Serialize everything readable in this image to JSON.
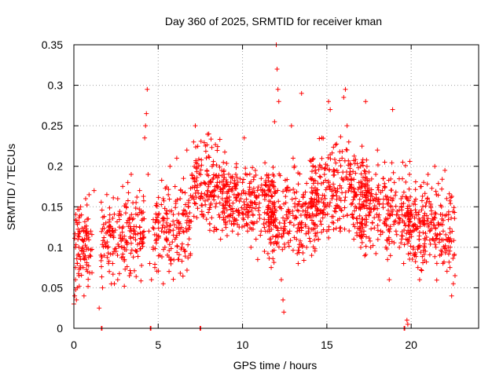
{
  "chart_data": {
    "type": "scatter",
    "title": "Day 360 of 2025, SRMTID for receiver kman",
    "xlabel": "GPS time / hours",
    "ylabel": "SRMTID / TECUs",
    "xlim": [
      0,
      24
    ],
    "ylim": [
      0,
      0.35
    ],
    "x_ticks": [
      0,
      5,
      10,
      15,
      20
    ],
    "x_tick_labels": [
      "0",
      "5",
      "10",
      "15",
      "20"
    ],
    "y_ticks": [
      0,
      0.05,
      0.1,
      0.15,
      0.2,
      0.25,
      0.3,
      0.35
    ],
    "y_tick_labels": [
      "0",
      "0.05",
      "0.1",
      "0.15",
      "0.2",
      "0.25",
      "0.3",
      "0.35"
    ],
    "grid": true,
    "marker": "+",
    "series_color": "#ff0000",
    "points": [
      [
        0.0,
        0.03
      ],
      [
        0.05,
        0.04
      ],
      [
        0.1,
        0.06
      ],
      [
        0.1,
        0.075
      ],
      [
        0.15,
        0.035
      ],
      [
        0.2,
        0.08
      ],
      [
        0.2,
        0.05
      ],
      [
        0.25,
        0.09
      ],
      [
        0.3,
        0.1
      ],
      [
        0.3,
        0.065
      ],
      [
        0.35,
        0.12
      ],
      [
        0.4,
        0.085
      ],
      [
        0.45,
        0.14
      ],
      [
        0.5,
        0.11
      ],
      [
        0.55,
        0.075
      ],
      [
        0.6,
        0.095
      ],
      [
        0.65,
        0.125
      ],
      [
        0.7,
        0.16
      ],
      [
        0.75,
        0.1
      ],
      [
        0.8,
        0.07
      ],
      [
        0.85,
        0.135
      ],
      [
        0.9,
        0.165
      ],
      [
        0.95,
        0.09
      ],
      [
        1.0,
        0.12
      ],
      [
        0.6,
        0.04
      ],
      [
        1.5,
        0.025
      ],
      [
        1.7,
        0.05
      ],
      [
        1.8,
        0.09
      ],
      [
        1.9,
        0.13
      ],
      [
        2.0,
        0.1
      ],
      [
        2.1,
        0.07
      ],
      [
        2.2,
        0.115
      ],
      [
        2.3,
        0.08
      ],
      [
        2.4,
        0.055
      ],
      [
        2.5,
        0.095
      ],
      [
        2.6,
        0.06
      ],
      [
        2.7,
        0.125
      ],
      [
        2.8,
        0.14
      ],
      [
        2.9,
        0.1
      ],
      [
        3.0,
        0.085
      ],
      [
        3.1,
        0.15
      ],
      [
        3.2,
        0.18
      ],
      [
        3.3,
        0.13
      ],
      [
        3.4,
        0.105
      ],
      [
        3.5,
        0.155
      ],
      [
        3.6,
        0.12
      ],
      [
        3.7,
        0.095
      ],
      [
        3.8,
        0.14
      ],
      [
        3.9,
        0.17
      ],
      [
        4.0,
        0.11
      ],
      [
        4.1,
        0.135
      ],
      [
        4.2,
        0.235
      ],
      [
        4.25,
        0.25
      ],
      [
        4.3,
        0.265
      ],
      [
        4.35,
        0.295
      ],
      [
        4.4,
        0.19
      ],
      [
        4.45,
        0.12
      ],
      [
        4.5,
        0.08
      ],
      [
        4.6,
        0.06
      ],
      [
        4.7,
        0.1
      ],
      [
        4.8,
        0.075
      ],
      [
        4.9,
        0.11
      ],
      [
        5.0,
        0.14
      ],
      [
        5.1,
        0.09
      ],
      [
        5.2,
        0.12
      ],
      [
        5.3,
        0.055
      ],
      [
        5.4,
        0.1
      ],
      [
        5.5,
        0.13
      ],
      [
        5.6,
        0.165
      ],
      [
        5.7,
        0.2
      ],
      [
        5.8,
        0.145
      ],
      [
        5.9,
        0.115
      ],
      [
        6.0,
        0.175
      ],
      [
        6.1,
        0.21
      ],
      [
        6.2,
        0.13
      ],
      [
        6.3,
        0.16
      ],
      [
        6.4,
        0.1
      ],
      [
        6.5,
        0.185
      ],
      [
        6.6,
        0.14
      ],
      [
        6.7,
        0.12
      ],
      [
        6.8,
        0.155
      ],
      [
        6.9,
        0.09
      ],
      [
        7.0,
        0.19
      ],
      [
        7.1,
        0.23
      ],
      [
        7.2,
        0.25
      ],
      [
        7.3,
        0.17
      ],
      [
        7.4,
        0.2
      ],
      [
        7.5,
        0.16
      ],
      [
        7.6,
        0.14
      ],
      [
        7.7,
        0.18
      ],
      [
        7.8,
        0.225
      ],
      [
        7.9,
        0.19
      ],
      [
        8.0,
        0.24
      ],
      [
        8.1,
        0.165
      ],
      [
        8.2,
        0.2
      ],
      [
        8.3,
        0.12
      ],
      [
        8.4,
        0.15
      ],
      [
        8.5,
        0.18
      ],
      [
        8.6,
        0.14
      ],
      [
        8.7,
        0.11
      ],
      [
        8.8,
        0.16
      ],
      [
        8.9,
        0.195
      ],
      [
        9.0,
        0.13
      ],
      [
        9.1,
        0.155
      ],
      [
        9.2,
        0.175
      ],
      [
        9.3,
        0.14
      ],
      [
        9.4,
        0.12
      ],
      [
        9.5,
        0.165
      ],
      [
        9.6,
        0.19
      ],
      [
        9.7,
        0.145
      ],
      [
        9.8,
        0.125
      ],
      [
        9.9,
        0.16
      ],
      [
        10.0,
        0.18
      ],
      [
        10.1,
        0.235
      ],
      [
        10.2,
        0.14
      ],
      [
        10.3,
        0.12
      ],
      [
        10.4,
        0.165
      ],
      [
        10.5,
        0.1
      ],
      [
        10.6,
        0.13
      ],
      [
        10.7,
        0.155
      ],
      [
        10.8,
        0.11
      ],
      [
        10.9,
        0.085
      ],
      [
        11.0,
        0.14
      ],
      [
        11.1,
        0.12
      ],
      [
        11.2,
        0.17
      ],
      [
        11.3,
        0.095
      ],
      [
        11.4,
        0.13
      ],
      [
        11.5,
        0.15
      ],
      [
        11.6,
        0.11
      ],
      [
        11.7,
        0.075
      ],
      [
        11.8,
        0.19
      ],
      [
        11.9,
        0.255
      ],
      [
        12.0,
        0.35
      ],
      [
        12.05,
        0.32
      ],
      [
        12.1,
        0.295
      ],
      [
        12.15,
        0.28
      ],
      [
        12.2,
        0.13
      ],
      [
        12.3,
        0.06
      ],
      [
        12.4,
        0.035
      ],
      [
        12.45,
        0.02
      ],
      [
        12.5,
        0.1
      ],
      [
        12.6,
        0.14
      ],
      [
        12.7,
        0.17
      ],
      [
        12.8,
        0.12
      ],
      [
        12.9,
        0.25
      ],
      [
        13.0,
        0.21
      ],
      [
        13.1,
        0.15
      ],
      [
        13.2,
        0.11
      ],
      [
        13.3,
        0.08
      ],
      [
        13.4,
        0.13
      ],
      [
        13.5,
        0.29
      ],
      [
        13.6,
        0.165
      ],
      [
        13.7,
        0.14
      ],
      [
        13.8,
        0.1
      ],
      [
        13.9,
        0.12
      ],
      [
        14.0,
        0.155
      ],
      [
        14.1,
        0.09
      ],
      [
        14.2,
        0.13
      ],
      [
        14.3,
        0.17
      ],
      [
        14.4,
        0.145
      ],
      [
        14.5,
        0.11
      ],
      [
        14.6,
        0.2
      ],
      [
        14.7,
        0.235
      ],
      [
        14.8,
        0.18
      ],
      [
        14.9,
        0.14
      ],
      [
        15.0,
        0.12
      ],
      [
        15.1,
        0.28
      ],
      [
        15.2,
        0.27
      ],
      [
        15.3,
        0.16
      ],
      [
        15.4,
        0.13
      ],
      [
        15.5,
        0.17
      ],
      [
        15.6,
        0.195
      ],
      [
        15.7,
        0.15
      ],
      [
        15.8,
        0.12
      ],
      [
        15.9,
        0.21
      ],
      [
        16.0,
        0.285
      ],
      [
        16.1,
        0.295
      ],
      [
        16.2,
        0.25
      ],
      [
        16.3,
        0.23
      ],
      [
        16.4,
        0.19
      ],
      [
        16.5,
        0.14
      ],
      [
        16.6,
        0.11
      ],
      [
        16.7,
        0.165
      ],
      [
        16.8,
        0.13
      ],
      [
        16.9,
        0.18
      ],
      [
        17.0,
        0.2
      ],
      [
        17.1,
        0.15
      ],
      [
        17.2,
        0.12
      ],
      [
        17.3,
        0.28
      ],
      [
        17.4,
        0.17
      ],
      [
        17.5,
        0.14
      ],
      [
        17.6,
        0.1
      ],
      [
        17.7,
        0.13
      ],
      [
        17.8,
        0.16
      ],
      [
        17.9,
        0.19
      ],
      [
        18.0,
        0.22
      ],
      [
        18.1,
        0.14
      ],
      [
        18.2,
        0.12
      ],
      [
        18.3,
        0.17
      ],
      [
        18.4,
        0.13
      ],
      [
        18.5,
        0.1
      ],
      [
        18.6,
        0.085
      ],
      [
        18.7,
        0.06
      ],
      [
        18.8,
        0.15
      ],
      [
        18.9,
        0.27
      ],
      [
        19.0,
        0.18
      ],
      [
        19.1,
        0.12
      ],
      [
        19.2,
        0.14
      ],
      [
        19.3,
        0.1
      ],
      [
        19.4,
        0.16
      ],
      [
        19.5,
        0.205
      ],
      [
        19.6,
        0.13
      ],
      [
        19.7,
        0.11
      ],
      [
        19.75,
        0.01
      ],
      [
        19.8,
        0.005
      ],
      [
        19.9,
        0.19
      ],
      [
        20.0,
        0.145
      ],
      [
        20.1,
        0.12
      ],
      [
        20.2,
        0.09
      ],
      [
        20.3,
        0.14
      ],
      [
        20.4,
        0.075
      ],
      [
        20.5,
        0.06
      ],
      [
        20.6,
        0.175
      ],
      [
        20.7,
        0.13
      ],
      [
        20.8,
        0.1
      ],
      [
        20.9,
        0.155
      ],
      [
        21.0,
        0.19
      ],
      [
        21.1,
        0.12
      ],
      [
        21.2,
        0.145
      ],
      [
        21.3,
        0.11
      ],
      [
        21.4,
        0.2
      ],
      [
        21.5,
        0.165
      ],
      [
        21.6,
        0.13
      ],
      [
        21.7,
        0.09
      ],
      [
        21.8,
        0.15
      ],
      [
        21.9,
        0.12
      ],
      [
        22.0,
        0.195
      ],
      [
        22.1,
        0.14
      ],
      [
        22.2,
        0.1
      ],
      [
        22.3,
        0.075
      ],
      [
        22.4,
        0.04
      ],
      [
        22.5,
        0.055
      ],
      [
        22.55,
        0.09
      ],
      [
        22.6,
        0.065
      ],
      [
        0.4,
        0.15
      ],
      [
        1.2,
        0.17
      ],
      [
        2.6,
        0.16
      ],
      [
        3.4,
        0.19
      ],
      [
        5.3,
        0.16
      ],
      [
        6.7,
        0.22
      ]
    ],
    "zero_points": [
      1.65,
      4.55,
      7.5,
      19.6
    ],
    "clusters": [
      {
        "x": [
          0.0,
          1.1
        ],
        "y": [
          0.03,
          0.17
        ],
        "n": 80
      },
      {
        "x": [
          1.6,
          4.2
        ],
        "y": [
          0.04,
          0.19
        ],
        "n": 170
      },
      {
        "x": [
          4.6,
          7.0
        ],
        "y": [
          0.05,
          0.2
        ],
        "n": 150
      },
      {
        "x": [
          7.0,
          9.0
        ],
        "y": [
          0.1,
          0.25
        ],
        "n": 150
      },
      {
        "x": [
          8.8,
          12.0
        ],
        "y": [
          0.09,
          0.22
        ],
        "n": 250
      },
      {
        "x": [
          11.5,
          14.5
        ],
        "y": [
          0.06,
          0.21
        ],
        "n": 210
      },
      {
        "x": [
          14.0,
          17.5
        ],
        "y": [
          0.08,
          0.26
        ],
        "n": 280
      },
      {
        "x": [
          17.0,
          20.0
        ],
        "y": [
          0.07,
          0.22
        ],
        "n": 210
      },
      {
        "x": [
          19.8,
          22.6
        ],
        "y": [
          0.05,
          0.2
        ],
        "n": 210
      }
    ]
  }
}
